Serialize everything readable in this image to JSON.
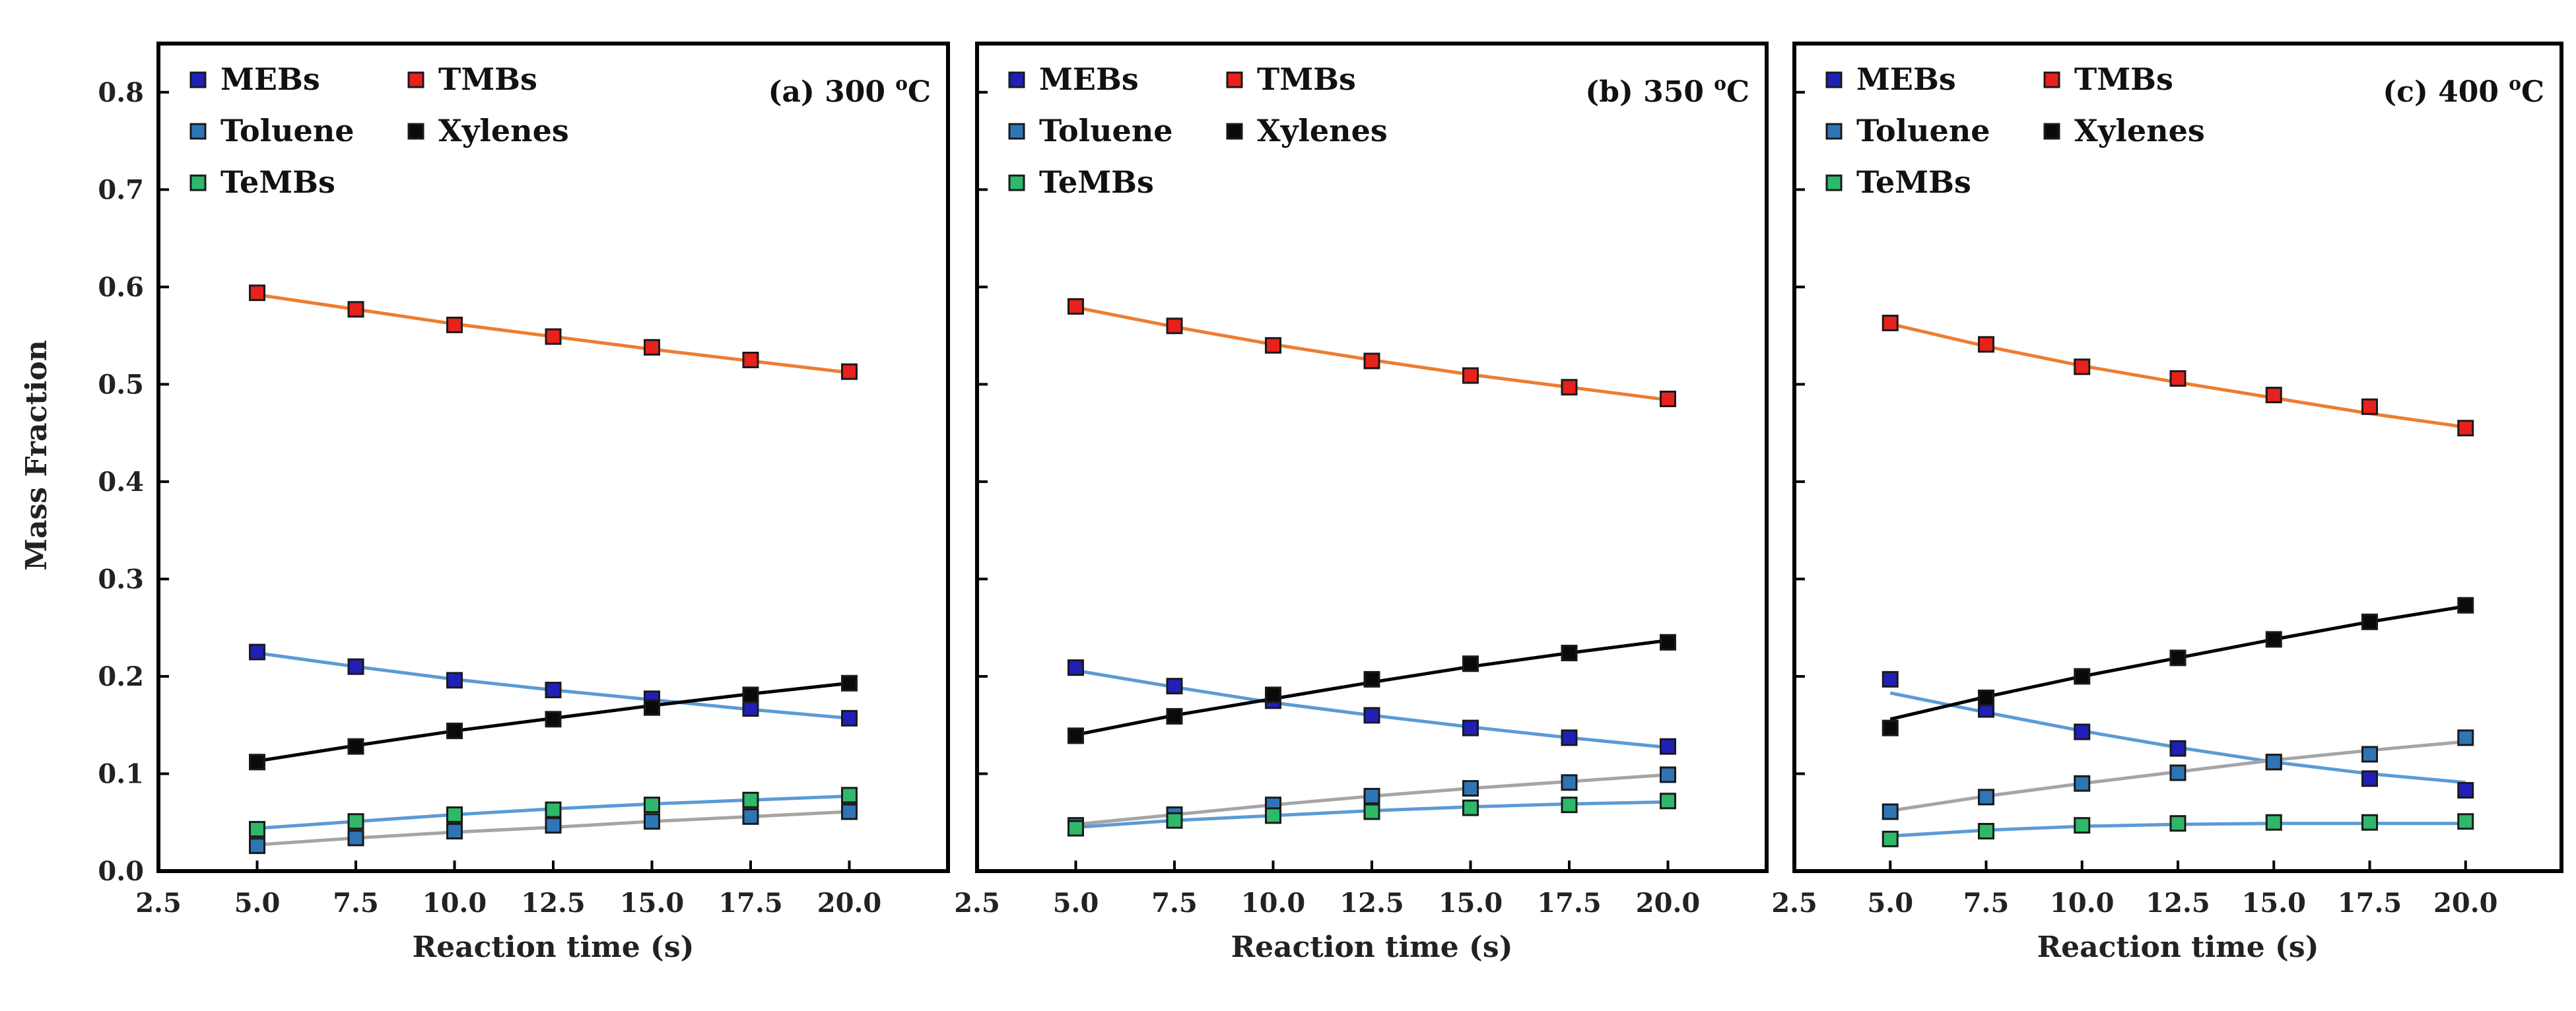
{
  "figure": {
    "ylabel": "Mass Fraction",
    "xlabel": "Reaction time (s)"
  },
  "colors": {
    "frame": "#000000",
    "tick_text": "#222222",
    "marker_edge": "#1a1a1a"
  },
  "chart_data": [
    {
      "type": "line",
      "panel_label": "(a) 300 ",
      "panel_sup": "o",
      "panel_unit": "C",
      "x": [
        5.0,
        7.5,
        10.0,
        12.5,
        15.0,
        17.5,
        20.0
      ],
      "xlim": [
        2.5,
        22.5
      ],
      "ylim": [
        0.0,
        0.85
      ],
      "xticks": [
        "2.5",
        "5.0",
        "7.5",
        "10.0",
        "12.5",
        "15.0",
        "17.5",
        "20.0"
      ],
      "yticks": [
        "0.0",
        "0.1",
        "0.2",
        "0.3",
        "0.4",
        "0.5",
        "0.6",
        "0.7",
        "0.8"
      ],
      "xlabel": "Reaction time (s)",
      "ylabel": "Mass Fraction",
      "series": [
        {
          "name": "MEBs",
          "marker_color": "#2020b8",
          "line_color": "#5b9bd5",
          "values": [
            0.225,
            0.21,
            0.196,
            0.186,
            0.177,
            0.167,
            0.157
          ],
          "fit": [
            0.224,
            0.21,
            0.197,
            0.186,
            0.176,
            0.166,
            0.157
          ]
        },
        {
          "name": "TMBs",
          "marker_color": "#e8211c",
          "line_color": "#ed7d31",
          "values": [
            0.594,
            0.577,
            0.561,
            0.549,
            0.538,
            0.525,
            0.513
          ],
          "fit": [
            0.592,
            0.577,
            0.562,
            0.549,
            0.536,
            0.524,
            0.512
          ]
        },
        {
          "name": "Toluene",
          "marker_color": "#2e75b6",
          "line_color": "#a5a5a5",
          "values": [
            0.026,
            0.034,
            0.041,
            0.047,
            0.051,
            0.056,
            0.061
          ],
          "fit": [
            0.027,
            0.034,
            0.04,
            0.045,
            0.051,
            0.056,
            0.061
          ]
        },
        {
          "name": "Xylenes",
          "marker_color": "#0a0a0a",
          "line_color": "#000000",
          "values": [
            0.112,
            0.128,
            0.144,
            0.156,
            0.168,
            0.181,
            0.193
          ],
          "fit": [
            0.113,
            0.129,
            0.144,
            0.157,
            0.17,
            0.182,
            0.193
          ]
        },
        {
          "name": "TeMBs",
          "marker_color": "#2eb86a",
          "line_color": "#5b9bd5",
          "values": [
            0.043,
            0.051,
            0.058,
            0.063,
            0.068,
            0.073,
            0.078
          ],
          "fit": [
            0.044,
            0.051,
            0.058,
            0.064,
            0.069,
            0.073,
            0.077
          ]
        }
      ]
    },
    {
      "type": "line",
      "panel_label": "(b) 350 ",
      "panel_sup": "o",
      "panel_unit": "C",
      "x": [
        5.0,
        7.5,
        10.0,
        12.5,
        15.0,
        17.5,
        20.0
      ],
      "xlim": [
        2.5,
        22.5
      ],
      "ylim": [
        0.0,
        0.85
      ],
      "xticks": [
        "2.5",
        "5.0",
        "7.5",
        "10.0",
        "12.5",
        "15.0",
        "17.5",
        "20.0"
      ],
      "yticks": [],
      "xlabel": "Reaction time (s)",
      "ylabel": "",
      "series": [
        {
          "name": "MEBs",
          "marker_color": "#2020b8",
          "line_color": "#5b9bd5",
          "values": [
            0.209,
            0.19,
            0.175,
            0.16,
            0.147,
            0.137,
            0.128
          ],
          "fit": [
            0.206,
            0.189,
            0.173,
            0.16,
            0.148,
            0.137,
            0.127
          ]
        },
        {
          "name": "TMBs",
          "marker_color": "#e8211c",
          "line_color": "#ed7d31",
          "values": [
            0.58,
            0.56,
            0.54,
            0.524,
            0.509,
            0.497,
            0.485
          ],
          "fit": [
            0.579,
            0.559,
            0.541,
            0.525,
            0.51,
            0.497,
            0.484
          ]
        },
        {
          "name": "Toluene",
          "marker_color": "#2e75b6",
          "line_color": "#a5a5a5",
          "values": [
            0.047,
            0.058,
            0.068,
            0.077,
            0.085,
            0.091,
            0.099
          ],
          "fit": [
            0.048,
            0.058,
            0.068,
            0.077,
            0.085,
            0.092,
            0.099
          ]
        },
        {
          "name": "Xylenes",
          "marker_color": "#0a0a0a",
          "line_color": "#000000",
          "values": [
            0.139,
            0.159,
            0.181,
            0.197,
            0.213,
            0.224,
            0.235
          ],
          "fit": [
            0.14,
            0.16,
            0.177,
            0.194,
            0.21,
            0.224,
            0.237
          ]
        },
        {
          "name": "TeMBs",
          "marker_color": "#2eb86a",
          "line_color": "#5b9bd5",
          "values": [
            0.044,
            0.052,
            0.057,
            0.061,
            0.065,
            0.068,
            0.072
          ],
          "fit": [
            0.045,
            0.052,
            0.057,
            0.062,
            0.066,
            0.069,
            0.071
          ]
        }
      ]
    },
    {
      "type": "line",
      "panel_label": "(c) 400 ",
      "panel_sup": "o",
      "panel_unit": "C",
      "x": [
        5.0,
        7.5,
        10.0,
        12.5,
        15.0,
        17.5,
        20.0
      ],
      "xlim": [
        2.5,
        22.5
      ],
      "ylim": [
        0.0,
        0.85
      ],
      "xticks": [
        "2.5",
        "5.0",
        "7.5",
        "10.0",
        "12.5",
        "15.0",
        "17.5",
        "20.0"
      ],
      "yticks": [],
      "xlabel": "Reaction time (s)",
      "ylabel": "",
      "series": [
        {
          "name": "MEBs",
          "marker_color": "#2020b8",
          "line_color": "#5b9bd5",
          "values": [
            0.197,
            0.166,
            0.143,
            0.126,
            0.112,
            0.095,
            0.083
          ],
          "fit": [
            0.183,
            0.163,
            0.144,
            0.127,
            0.112,
            0.1,
            0.091
          ]
        },
        {
          "name": "TMBs",
          "marker_color": "#e8211c",
          "line_color": "#ed7d31",
          "values": [
            0.563,
            0.541,
            0.518,
            0.506,
            0.489,
            0.477,
            0.455
          ],
          "fit": [
            0.562,
            0.539,
            0.519,
            0.502,
            0.486,
            0.47,
            0.456
          ]
        },
        {
          "name": "Toluene",
          "marker_color": "#2e75b6",
          "line_color": "#a5a5a5",
          "values": [
            0.061,
            0.076,
            0.09,
            0.101,
            0.112,
            0.12,
            0.137
          ],
          "fit": [
            0.062,
            0.077,
            0.09,
            0.102,
            0.114,
            0.124,
            0.133
          ]
        },
        {
          "name": "Xylenes",
          "marker_color": "#0a0a0a",
          "line_color": "#000000",
          "values": [
            0.147,
            0.178,
            0.2,
            0.219,
            0.238,
            0.256,
            0.273
          ],
          "fit": [
            0.156,
            0.179,
            0.2,
            0.219,
            0.238,
            0.256,
            0.272
          ]
        },
        {
          "name": "TeMBs",
          "marker_color": "#2eb86a",
          "line_color": "#5b9bd5",
          "values": [
            0.033,
            0.041,
            0.047,
            0.049,
            0.05,
            0.05,
            0.051
          ],
          "fit": [
            0.036,
            0.042,
            0.046,
            0.048,
            0.049,
            0.049,
            0.049
          ]
        }
      ]
    }
  ]
}
